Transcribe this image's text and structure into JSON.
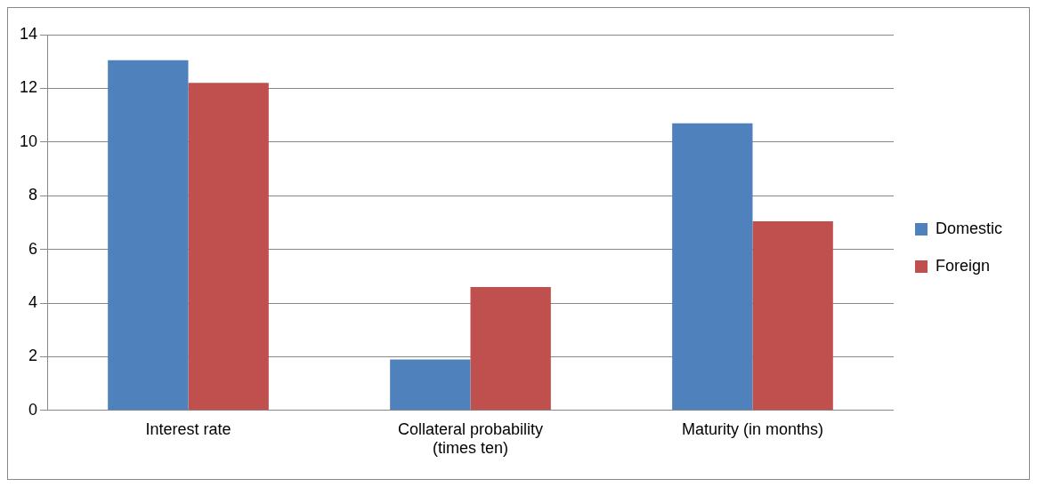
{
  "chart_data": {
    "type": "bar",
    "categories": [
      "Interest rate",
      "Collateral probability (times ten)",
      "Maturity (in months)"
    ],
    "series": [
      {
        "name": "Domestic",
        "color": "#4f81bd",
        "values": [
          13.05,
          1.9,
          10.7
        ]
      },
      {
        "name": "Foreign",
        "color": "#c0504d",
        "values": [
          12.2,
          4.6,
          7.05
        ]
      }
    ],
    "ylim": [
      0,
      14
    ],
    "yticks": [
      0,
      2,
      4,
      6,
      8,
      10,
      12,
      14
    ],
    "grid": "y",
    "legend": "right"
  }
}
